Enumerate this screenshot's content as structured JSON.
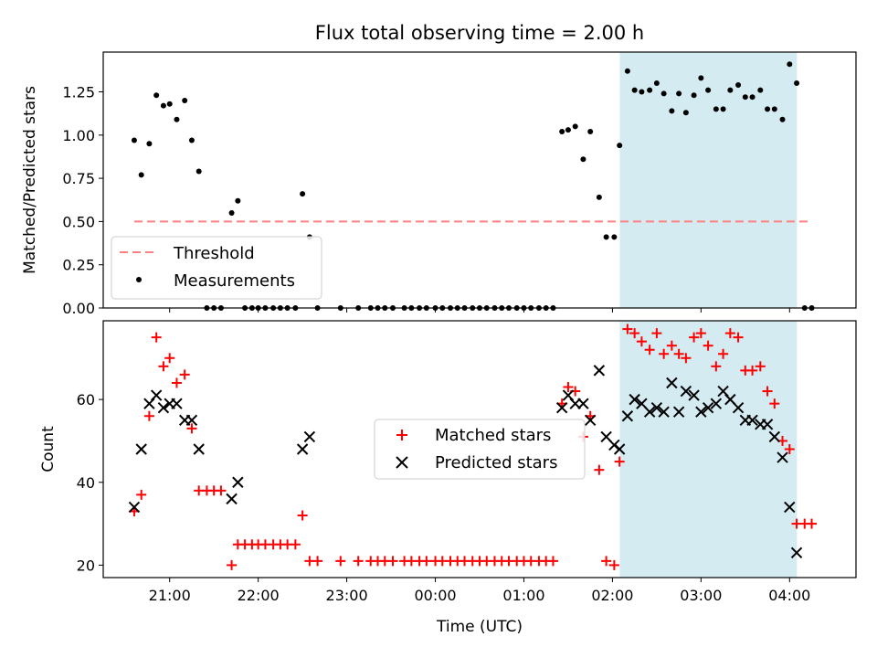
{
  "title": "Flux total observing time = 2.00 h",
  "colors": {
    "band": "#d3ebf1",
    "threshold": "#ff8080",
    "measurements": "#000000",
    "matched": "#ff0000",
    "predicted": "#000000"
  },
  "chart_data": [
    {
      "type": "scatter",
      "ylabel": "Matched/Predicted stars",
      "ylim": [
        0,
        1.48
      ],
      "yticks": [
        "0.00",
        "0.25",
        "0.50",
        "0.75",
        "1.00",
        "1.25"
      ],
      "ytick_values": [
        0,
        0.25,
        0.5,
        0.75,
        1.0,
        1.25
      ],
      "xlim": [
        20.25,
        4.75
      ],
      "xticks": [
        21,
        22,
        23,
        0,
        1,
        2,
        3,
        4
      ],
      "shaded_band": [
        2.083,
        4.083
      ],
      "threshold": {
        "name": "Threshold",
        "value": 0.5,
        "x_range": [
          20.6,
          4.25
        ]
      },
      "legend": {
        "placement": "lower-left",
        "entries": [
          "Threshold",
          "Measurements"
        ]
      },
      "series": [
        {
          "name": "Measurements",
          "x": [
            20.6,
            20.68,
            20.77,
            20.85,
            20.93,
            21.0,
            21.08,
            21.17,
            21.25,
            21.33,
            21.42,
            21.5,
            21.58,
            21.7,
            21.77,
            21.85,
            21.93,
            22.0,
            22.08,
            22.17,
            22.25,
            22.33,
            22.42,
            22.5,
            22.58,
            22.67,
            22.93,
            23.13,
            23.27,
            23.35,
            23.43,
            23.52,
            23.65,
            23.73,
            23.82,
            23.9,
            24.0,
            24.08,
            24.17,
            24.25,
            24.33,
            24.42,
            24.5,
            24.58,
            24.67,
            24.75,
            24.83,
            24.92,
            25.0,
            25.08,
            25.17,
            25.25,
            25.33,
            25.43,
            25.5,
            25.58,
            25.67,
            25.75,
            25.85,
            25.93,
            26.02,
            26.08,
            26.17,
            26.25,
            26.33,
            26.42,
            26.5,
            26.58,
            26.67,
            26.75,
            26.83,
            26.92,
            27.0,
            27.08,
            27.17,
            27.25,
            27.33,
            27.42,
            27.5,
            27.58,
            27.67,
            27.75,
            27.83,
            27.92,
            28.0,
            28.08,
            28.17,
            28.25
          ],
          "y": [
            0.97,
            0.77,
            0.95,
            1.23,
            1.17,
            1.18,
            1.09,
            1.2,
            0.97,
            0.79,
            0,
            0,
            0,
            0.55,
            0.62,
            0,
            0,
            0,
            0,
            0,
            0,
            0,
            0,
            0.66,
            0.41,
            0,
            0,
            0,
            0,
            0,
            0,
            0,
            0,
            0,
            0,
            0,
            0,
            0,
            0,
            0,
            0,
            0,
            0,
            0,
            0,
            0,
            0,
            0,
            0,
            0,
            0,
            0,
            0,
            1.02,
            1.03,
            1.05,
            0.86,
            1.02,
            0.64,
            0.41,
            0.41,
            0.94,
            1.37,
            1.26,
            1.25,
            1.26,
            1.3,
            1.24,
            1.14,
            1.24,
            1.13,
            1.23,
            1.33,
            1.26,
            1.15,
            1.15,
            1.26,
            1.29,
            1.22,
            1.22,
            1.26,
            1.15,
            1.15,
            1.09,
            1.41,
            1.3,
            0,
            0
          ]
        }
      ]
    },
    {
      "type": "scatter",
      "xlabel": "Time (UTC)",
      "ylabel": "Count",
      "ylim": [
        17,
        79
      ],
      "yticks": [
        "20",
        "40",
        "60"
      ],
      "ytick_values": [
        20,
        40,
        60
      ],
      "xlim": [
        20.25,
        4.75
      ],
      "xtick_labels": [
        "21:00",
        "22:00",
        "23:00",
        "00:00",
        "01:00",
        "02:00",
        "03:00",
        "04:00"
      ],
      "xtick_values": [
        21,
        22,
        23,
        24,
        25,
        26,
        27,
        28
      ],
      "shaded_band": [
        2.083,
        4.083
      ],
      "legend": {
        "placement": "center",
        "entries": [
          "Matched stars",
          "Predicted stars"
        ]
      },
      "series": [
        {
          "name": "Matched stars",
          "x": [
            20.6,
            20.68,
            20.77,
            20.85,
            20.93,
            21.0,
            21.08,
            21.17,
            21.25,
            21.33,
            21.42,
            21.5,
            21.58,
            21.7,
            21.77,
            21.85,
            21.93,
            22.0,
            22.08,
            22.17,
            22.25,
            22.33,
            22.42,
            22.5,
            22.58,
            22.67,
            22.93,
            23.13,
            23.27,
            23.35,
            23.43,
            23.52,
            23.65,
            23.73,
            23.82,
            23.9,
            24.0,
            24.08,
            24.17,
            24.25,
            24.33,
            24.42,
            24.5,
            24.58,
            24.67,
            24.75,
            24.83,
            24.92,
            25.0,
            25.08,
            25.17,
            25.25,
            25.33,
            25.43,
            25.5,
            25.58,
            25.67,
            25.75,
            25.85,
            25.93,
            26.02,
            26.08,
            26.17,
            26.25,
            26.33,
            26.42,
            26.5,
            26.58,
            26.67,
            26.75,
            26.83,
            26.92,
            27.0,
            27.08,
            27.17,
            27.25,
            27.33,
            27.42,
            27.5,
            27.58,
            27.67,
            27.75,
            27.83,
            27.92,
            28.0,
            28.08,
            28.17,
            28.25
          ],
          "y": [
            33,
            37,
            56,
            75,
            68,
            70,
            64,
            66,
            53,
            38,
            38,
            38,
            38,
            20,
            25,
            25,
            25,
            25,
            25,
            25,
            25,
            25,
            25,
            32,
            21,
            21,
            21,
            21,
            21,
            21,
            21,
            21,
            21,
            21,
            21,
            21,
            21,
            21,
            21,
            21,
            21,
            21,
            21,
            21,
            21,
            21,
            21,
            21,
            21,
            21,
            21,
            21,
            21,
            59,
            63,
            62,
            51,
            56,
            43,
            21,
            20,
            45,
            77,
            76,
            74,
            72,
            76,
            71,
            73,
            71,
            70,
            75,
            76,
            73,
            68,
            71,
            76,
            75,
            67,
            67,
            68,
            62,
            59,
            50,
            48,
            30,
            30,
            30
          ]
        },
        {
          "name": "Predicted stars",
          "x": [
            20.6,
            20.68,
            20.77,
            20.85,
            20.93,
            21.0,
            21.08,
            21.17,
            21.25,
            21.33,
            21.7,
            21.77,
            22.5,
            22.58,
            25.43,
            25.5,
            25.58,
            25.67,
            25.75,
            25.85,
            25.93,
            26.02,
            26.08,
            26.17,
            26.25,
            26.33,
            26.42,
            26.5,
            26.58,
            26.67,
            26.75,
            26.83,
            26.92,
            27.0,
            27.08,
            27.17,
            27.25,
            27.33,
            27.42,
            27.5,
            27.58,
            27.67,
            27.75,
            27.83,
            27.92,
            28.0,
            28.08
          ],
          "y": [
            34,
            48,
            59,
            61,
            58,
            59,
            59,
            55,
            55,
            48,
            36,
            40,
            48,
            51,
            58,
            61,
            59,
            59,
            55,
            67,
            51,
            49,
            48,
            56,
            60,
            59,
            57,
            58,
            57,
            64,
            57,
            62,
            61,
            57,
            58,
            59,
            62,
            60,
            58,
            55,
            55,
            54,
            54,
            51,
            46,
            34,
            23
          ]
        }
      ]
    }
  ]
}
